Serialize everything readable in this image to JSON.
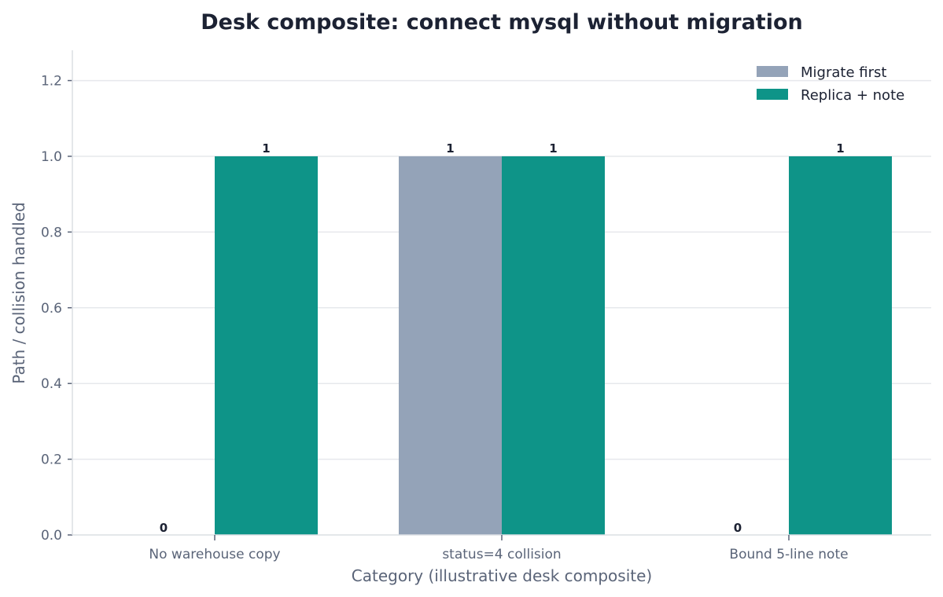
{
  "chart_data": {
    "type": "bar",
    "title": "Desk composite: connect mysql without migration",
    "xlabel": "Category (illustrative desk composite)",
    "ylabel": "Path / collision handled",
    "categories": [
      "No warehouse copy",
      "status=4 collision",
      "Bound 5-line note"
    ],
    "series": [
      {
        "name": "Migrate first",
        "values": [
          0,
          1,
          0
        ],
        "color": "#94a3b8"
      },
      {
        "name": "Replica + note",
        "values": [
          1,
          1,
          1
        ],
        "color": "#0e9488"
      }
    ],
    "ylim": [
      0,
      1.28
    ],
    "yticks": [
      "0.0",
      "0.2",
      "0.4",
      "0.6",
      "0.8",
      "1.0",
      "1.2"
    ],
    "ytick_values": [
      0,
      0.2,
      0.4,
      0.6,
      0.8,
      1.0,
      1.2
    ],
    "grid": true,
    "legend_position": "top-right"
  }
}
